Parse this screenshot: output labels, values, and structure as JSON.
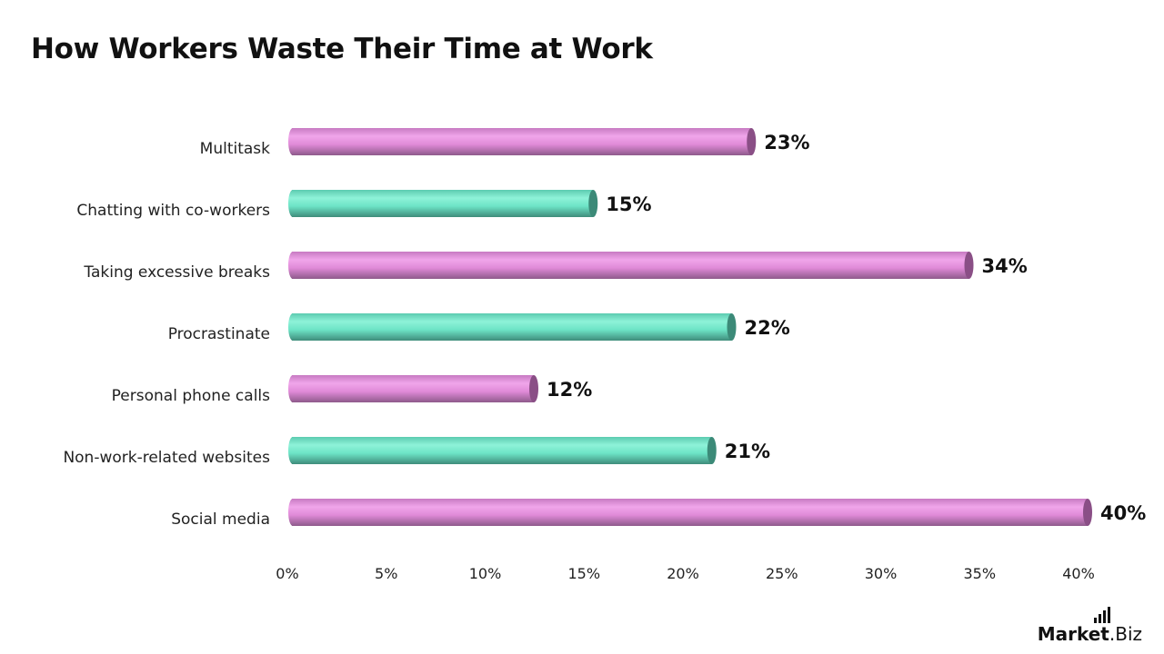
{
  "chart_data": {
    "type": "bar",
    "orientation": "horizontal",
    "title": "How Workers Waste Their Time at Work",
    "categories": [
      "Multitask",
      "Chatting with co-workers",
      "Taking excessive breaks",
      "Procrastinate",
      "Personal phone calls",
      "Non-work-related websites",
      "Social media"
    ],
    "values": [
      23,
      15,
      34,
      22,
      12,
      21,
      40
    ],
    "value_labels": [
      "23%",
      "15%",
      "34%",
      "22%",
      "12%",
      "21%",
      "40%"
    ],
    "xlim": [
      0,
      40
    ],
    "xticks": [
      0,
      5,
      10,
      15,
      20,
      25,
      30,
      35,
      40
    ],
    "xtick_labels": [
      "0%",
      "5%",
      "10%",
      "15%",
      "20%",
      "25%",
      "30%",
      "35%",
      "40%"
    ],
    "grid": false,
    "legend": "none",
    "bar_style": "cylinder",
    "colors": {
      "pink": "#e08ad8",
      "pink_dark": "#8a4f86",
      "teal": "#6de4c6",
      "teal_dark": "#3c8a78"
    },
    "bar_color_pattern": [
      "pink",
      "teal",
      "pink",
      "teal",
      "pink",
      "teal",
      "pink"
    ]
  },
  "brand": {
    "part1": "Market",
    "part2": ".Biz"
  }
}
